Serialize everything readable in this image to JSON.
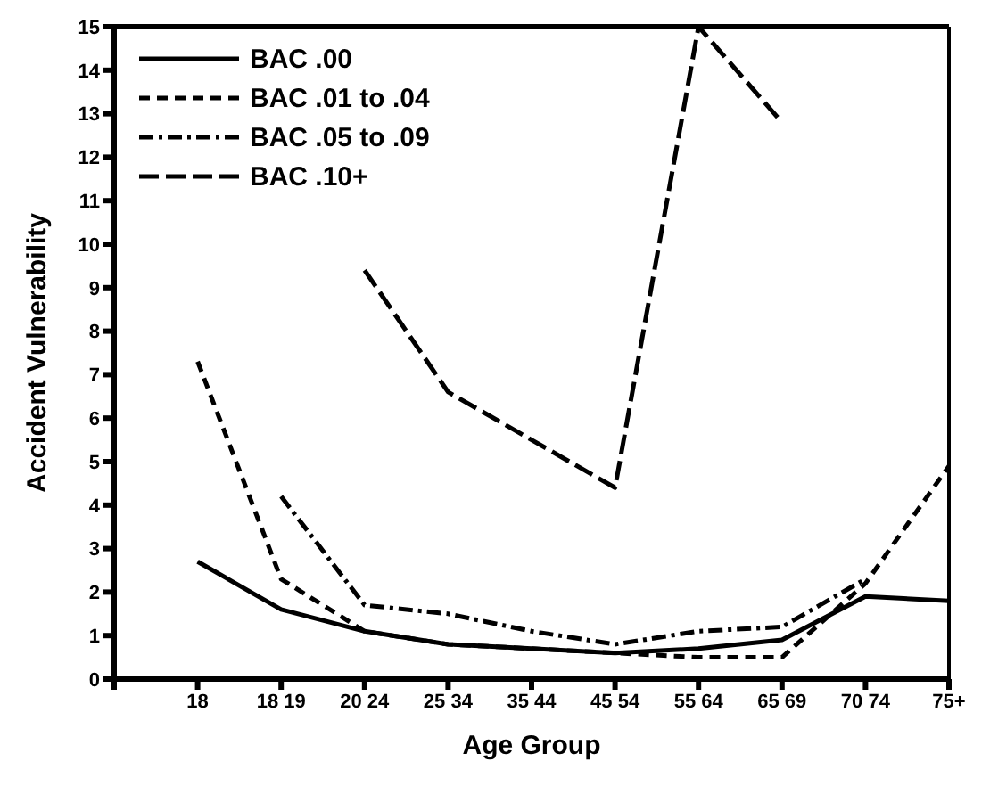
{
  "chart_data": {
    "type": "line",
    "xlabel": "Age Group",
    "ylabel": "Accident Vulnerability",
    "categories": [
      null,
      "18",
      "18 19",
      "20 24",
      "25 34",
      "35 44",
      "45 54",
      "55 64",
      "65 69",
      "70 74",
      "75+"
    ],
    "series": [
      {
        "name": "BAC .00",
        "color": "#000000",
        "line_style": "solid",
        "values": [
          null,
          2.7,
          1.6,
          1.1,
          0.8,
          0.7,
          0.6,
          0.7,
          0.9,
          1.9,
          1.8
        ]
      },
      {
        "name": "BAC .01 to .04",
        "color": "#000000",
        "line_style": "dashed",
        "values": [
          null,
          7.3,
          2.3,
          1.1,
          0.8,
          0.7,
          0.6,
          0.5,
          0.5,
          2.2,
          4.9
        ]
      },
      {
        "name": "BAC .05 to .09",
        "color": "#000000",
        "line_style": "dashdot",
        "values": [
          null,
          null,
          4.2,
          1.7,
          1.5,
          1.1,
          0.8,
          1.1,
          1.2,
          2.3,
          null
        ]
      },
      {
        "name": "BAC .10+",
        "color": "#000000",
        "line_style": "longdash",
        "values": [
          null,
          null,
          null,
          9.4,
          6.6,
          5.5,
          4.4,
          15,
          12.8,
          null,
          null
        ]
      }
    ],
    "ylim": [
      0,
      15
    ],
    "yticks": [
      0,
      1,
      2,
      3,
      4,
      5,
      6,
      7,
      8,
      9,
      10,
      11,
      12,
      13,
      14,
      15
    ],
    "legend": "top left",
    "marker": "none"
  }
}
